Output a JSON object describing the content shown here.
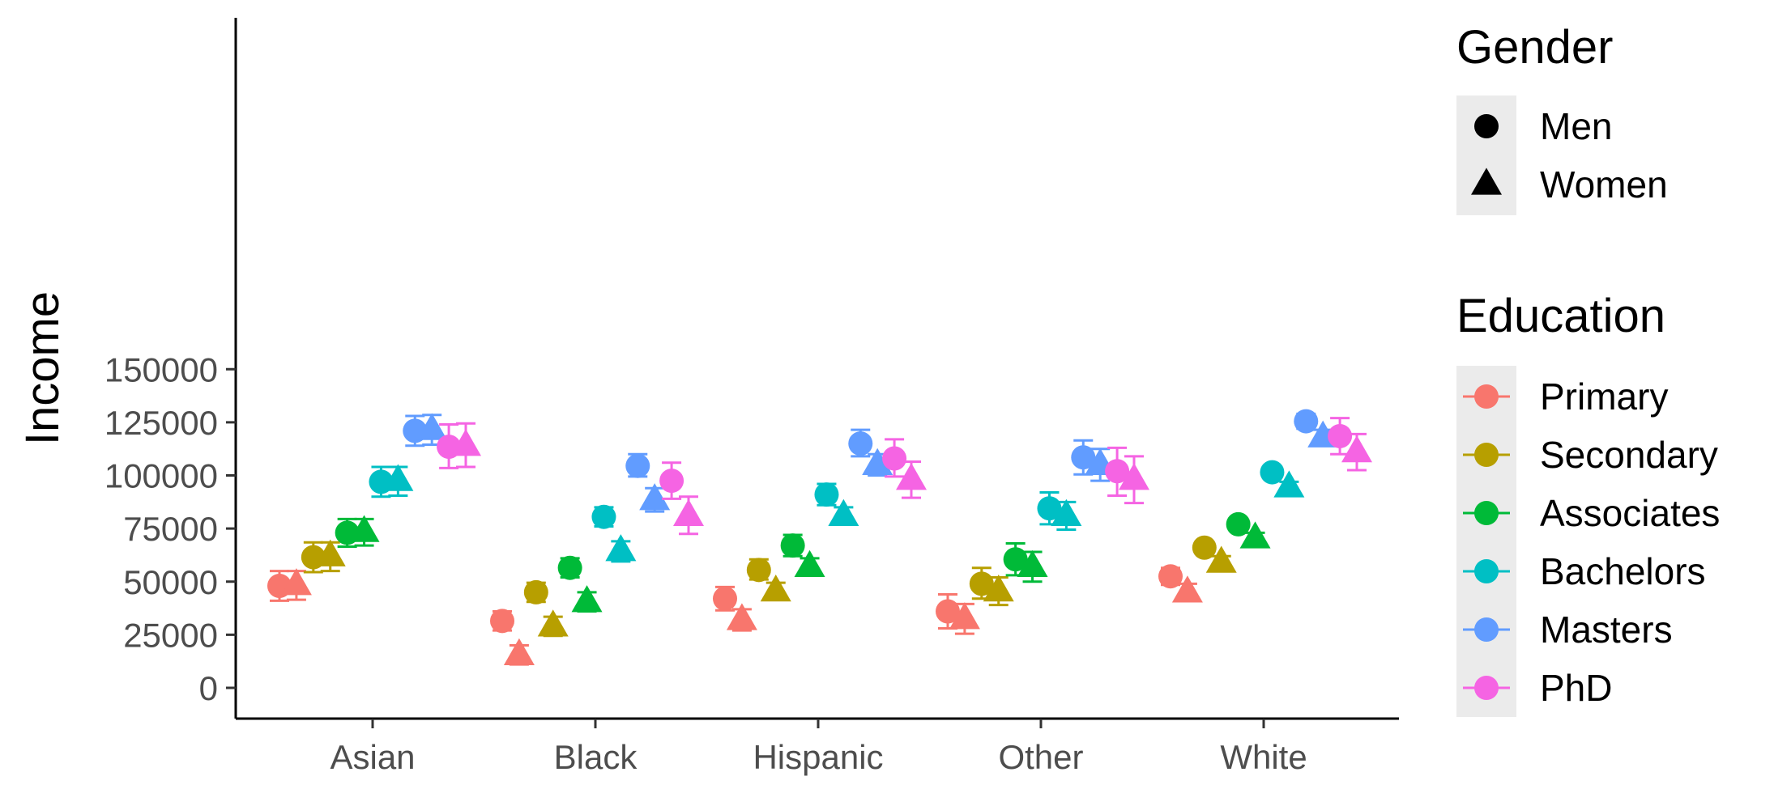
{
  "chart_data": {
    "type": "scatter",
    "xlabel": "",
    "ylabel": "Income",
    "categories": [
      "Asian",
      "Black",
      "Hispanic",
      "Other",
      "White"
    ],
    "ylim": [
      -7000,
      158000
    ],
    "yticks": [
      {
        "value": 0,
        "label": "0"
      },
      {
        "value": 25000,
        "label": "25000"
      },
      {
        "value": 50000,
        "label": "50000"
      },
      {
        "value": 75000,
        "label": "75000"
      },
      {
        "value": 100000,
        "label": "100000"
      },
      {
        "value": 125000,
        "label": "125000"
      },
      {
        "value": 150000,
        "label": "150000"
      }
    ],
    "grid": false,
    "legend_placement": "right",
    "legends": {
      "gender": {
        "title": "Gender",
        "items": [
          {
            "label": "Men",
            "shape": "circle"
          },
          {
            "label": "Women",
            "shape": "triangle"
          }
        ]
      },
      "education": {
        "title": "Education",
        "items": [
          {
            "label": "Primary",
            "color": "#F8766D"
          },
          {
            "label": "Secondary",
            "color": "#B79F00"
          },
          {
            "label": "Associates",
            "color": "#00BA38"
          },
          {
            "label": "Bachelors",
            "color": "#00BFC4"
          },
          {
            "label": "Masters",
            "color": "#619CFF"
          },
          {
            "label": "PhD",
            "color": "#F564E3"
          }
        ]
      }
    },
    "series": [
      {
        "education": "Primary",
        "gender": "Men",
        "points": [
          {
            "category": "Asian",
            "y": 48000,
            "low": 41000,
            "high": 55000
          },
          {
            "category": "Black",
            "y": 31500,
            "low": 27000,
            "high": 36000
          },
          {
            "category": "Hispanic",
            "y": 42000,
            "low": 36500,
            "high": 47500
          },
          {
            "category": "Other",
            "y": 36000,
            "low": 28000,
            "high": 44000
          },
          {
            "category": "White",
            "y": 52500,
            "low": 48500,
            "high": 56500
          }
        ]
      },
      {
        "education": "Primary",
        "gender": "Women",
        "points": [
          {
            "category": "Asian",
            "y": 48500,
            "low": 41500,
            "high": 55000
          },
          {
            "category": "Black",
            "y": 15500,
            "low": 11000,
            "high": 20000
          },
          {
            "category": "Hispanic",
            "y": 32000,
            "low": 27000,
            "high": 37000
          },
          {
            "category": "Other",
            "y": 32500,
            "low": 25500,
            "high": 39500
          },
          {
            "category": "White",
            "y": 45000,
            "low": 41000,
            "high": 49000
          }
        ]
      },
      {
        "education": "Secondary",
        "gender": "Men",
        "points": [
          {
            "category": "Asian",
            "y": 61500,
            "low": 54500,
            "high": 68500
          },
          {
            "category": "Black",
            "y": 45000,
            "low": 40500,
            "high": 49500
          },
          {
            "category": "Hispanic",
            "y": 55500,
            "low": 51000,
            "high": 60500
          },
          {
            "category": "Other",
            "y": 49000,
            "low": 42000,
            "high": 56500
          },
          {
            "category": "White",
            "y": 66000,
            "low": 63500,
            "high": 68500
          }
        ]
      },
      {
        "education": "Secondary",
        "gender": "Women",
        "points": [
          {
            "category": "Asian",
            "y": 62000,
            "low": 55000,
            "high": 68500
          },
          {
            "category": "Black",
            "y": 29000,
            "low": 24500,
            "high": 33500
          },
          {
            "category": "Hispanic",
            "y": 45500,
            "low": 41500,
            "high": 49500
          },
          {
            "category": "Other",
            "y": 45500,
            "low": 39000,
            "high": 52000
          },
          {
            "category": "White",
            "y": 59000,
            "low": 56000,
            "high": 62000
          }
        ]
      },
      {
        "education": "Associates",
        "gender": "Men",
        "points": [
          {
            "category": "Asian",
            "y": 73000,
            "low": 66500,
            "high": 79500
          },
          {
            "category": "Black",
            "y": 56500,
            "low": 52000,
            "high": 61000
          },
          {
            "category": "Hispanic",
            "y": 67000,
            "low": 62000,
            "high": 72000
          },
          {
            "category": "Other",
            "y": 60500,
            "low": 53000,
            "high": 68000
          },
          {
            "category": "White",
            "y": 77000,
            "low": 74500,
            "high": 79500
          }
        ]
      },
      {
        "education": "Associates",
        "gender": "Women",
        "points": [
          {
            "category": "Asian",
            "y": 73500,
            "low": 67000,
            "high": 79500
          },
          {
            "category": "Black",
            "y": 40500,
            "low": 36000,
            "high": 45000
          },
          {
            "category": "Hispanic",
            "y": 57000,
            "low": 53000,
            "high": 61000
          },
          {
            "category": "Other",
            "y": 57000,
            "low": 50000,
            "high": 64000
          },
          {
            "category": "White",
            "y": 70500,
            "low": 68000,
            "high": 73000
          }
        ]
      },
      {
        "education": "Bachelors",
        "gender": "Men",
        "points": [
          {
            "category": "Asian",
            "y": 97000,
            "low": 90000,
            "high": 104000
          },
          {
            "category": "Black",
            "y": 80500,
            "low": 76000,
            "high": 85000
          },
          {
            "category": "Hispanic",
            "y": 91000,
            "low": 86000,
            "high": 96000
          },
          {
            "category": "Other",
            "y": 84500,
            "low": 77000,
            "high": 92000
          },
          {
            "category": "White",
            "y": 101500,
            "low": 99000,
            "high": 104000
          }
        ]
      },
      {
        "education": "Bachelors",
        "gender": "Women",
        "points": [
          {
            "category": "Asian",
            "y": 97500,
            "low": 90500,
            "high": 104000
          },
          {
            "category": "Black",
            "y": 64500,
            "low": 59500,
            "high": 69000
          },
          {
            "category": "Hispanic",
            "y": 81000,
            "low": 77000,
            "high": 85000
          },
          {
            "category": "Other",
            "y": 81000,
            "low": 74500,
            "high": 87500
          },
          {
            "category": "White",
            "y": 94500,
            "low": 92000,
            "high": 97000
          }
        ]
      },
      {
        "education": "Masters",
        "gender": "Men",
        "points": [
          {
            "category": "Asian",
            "y": 121000,
            "low": 114000,
            "high": 128000
          },
          {
            "category": "Black",
            "y": 104500,
            "low": 99500,
            "high": 110000
          },
          {
            "category": "Hispanic",
            "y": 115000,
            "low": 109000,
            "high": 121500
          },
          {
            "category": "Other",
            "y": 108500,
            "low": 100500,
            "high": 116500
          },
          {
            "category": "White",
            "y": 125500,
            "low": 122000,
            "high": 129000
          }
        ]
      },
      {
        "education": "Masters",
        "gender": "Women",
        "points": [
          {
            "category": "Asian",
            "y": 121500,
            "low": 114500,
            "high": 128500
          },
          {
            "category": "Black",
            "y": 88500,
            "low": 83000,
            "high": 94000
          },
          {
            "category": "Hispanic",
            "y": 105000,
            "low": 100000,
            "high": 110000
          },
          {
            "category": "Other",
            "y": 105000,
            "low": 97500,
            "high": 112500
          },
          {
            "category": "White",
            "y": 118000,
            "low": 114500,
            "high": 121500
          }
        ]
      },
      {
        "education": "PhD",
        "gender": "Men",
        "points": [
          {
            "category": "Asian",
            "y": 113500,
            "low": 103500,
            "high": 124000
          },
          {
            "category": "Black",
            "y": 97500,
            "low": 89000,
            "high": 106000
          },
          {
            "category": "Hispanic",
            "y": 108000,
            "low": 99500,
            "high": 117000
          },
          {
            "category": "Other",
            "y": 102000,
            "low": 90500,
            "high": 113000
          },
          {
            "category": "White",
            "y": 118500,
            "low": 110000,
            "high": 127000
          }
        ]
      },
      {
        "education": "PhD",
        "gender": "Women",
        "points": [
          {
            "category": "Asian",
            "y": 114000,
            "low": 104000,
            "high": 124500
          },
          {
            "category": "Black",
            "y": 81000,
            "low": 72500,
            "high": 90000
          },
          {
            "category": "Hispanic",
            "y": 98000,
            "low": 89500,
            "high": 106500
          },
          {
            "category": "Other",
            "y": 98000,
            "low": 87000,
            "high": 109000
          },
          {
            "category": "White",
            "y": 111000,
            "low": 102500,
            "high": 119500
          }
        ]
      }
    ]
  }
}
